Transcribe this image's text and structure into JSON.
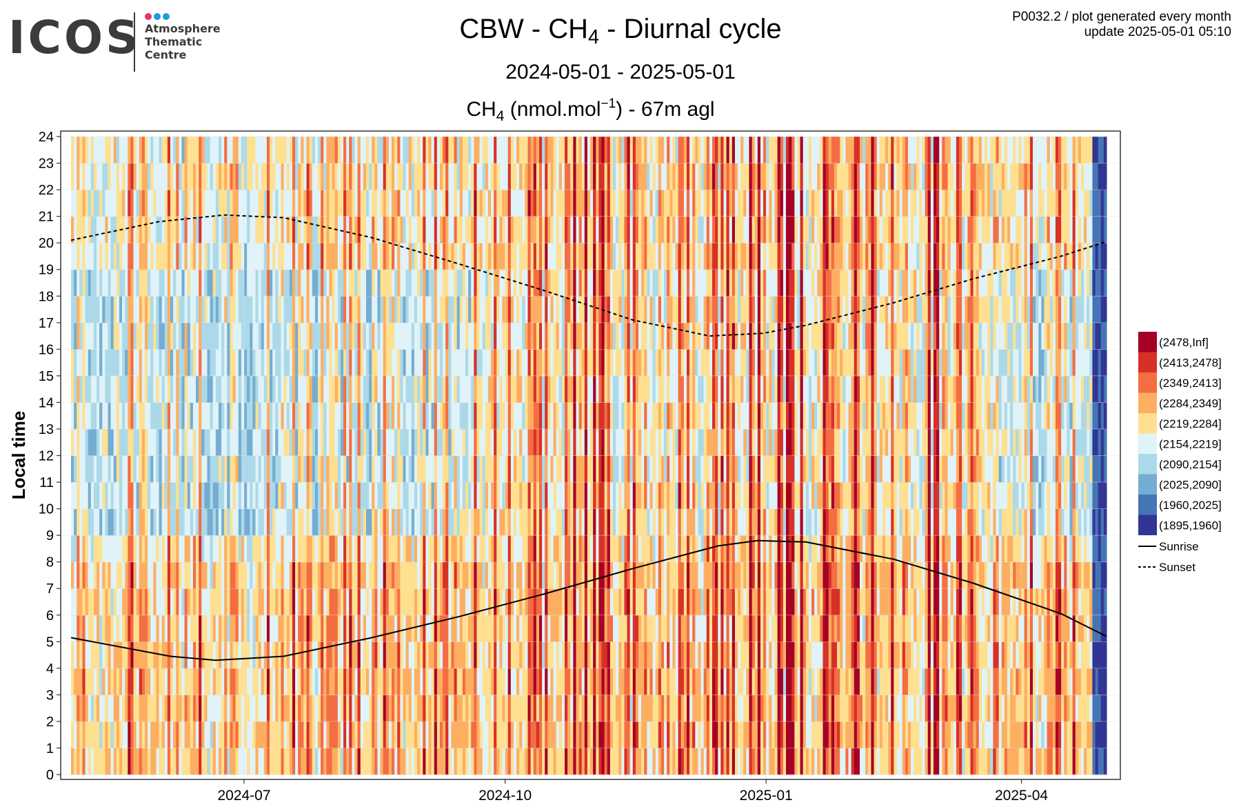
{
  "logo": {
    "text": "ICOS",
    "subtitle_lines": [
      "Atmosphere",
      "Thematic",
      "Centre"
    ],
    "dot_colors": [
      "#e8336e",
      "#1f9be0",
      "#1f9be0"
    ]
  },
  "header": {
    "title_pre": "CBW - CH",
    "title_sub": "4",
    "title_post": " - Diurnal cycle",
    "subtitle": "2024-05-01 - 2025-05-01",
    "meta_line1": "P0032.2 / plot generated every month",
    "meta_line2": "update  2025-05-01 05:10"
  },
  "chart_data": {
    "type": "heatmap",
    "plot_title": {
      "pre": "CH",
      "sub": "4",
      "mid": " (nmol.mol",
      "sup": "−1",
      "post": ") - 67m agl"
    },
    "ylabel": "Local time",
    "x_range": [
      "2024-05-01",
      "2025-05-01"
    ],
    "y_range": [
      0,
      24
    ],
    "y_ticks": [
      0,
      1,
      2,
      3,
      4,
      5,
      6,
      7,
      8,
      9,
      10,
      11,
      12,
      13,
      14,
      15,
      16,
      17,
      18,
      19,
      20,
      21,
      22,
      23,
      24
    ],
    "x_ticks": [
      {
        "date": "2024-07-01",
        "label": "2024-07"
      },
      {
        "date": "2024-10-01",
        "label": "2024-10"
      },
      {
        "date": "2025-01-01",
        "label": "2025-01"
      },
      {
        "date": "2025-04-01",
        "label": "2025-04"
      }
    ],
    "grid": true,
    "legend_position": "right",
    "legend": [
      {
        "label": "(2478,Inf]",
        "color": "#a50026"
      },
      {
        "label": "(2413,2478]",
        "color": "#d73027"
      },
      {
        "label": "(2349,2413]",
        "color": "#f46d43"
      },
      {
        "label": "(2284,2349]",
        "color": "#fdae61"
      },
      {
        "label": "(2219,2284]",
        "color": "#fee090"
      },
      {
        "label": "(2154,2219]",
        "color": "#e0f3f8"
      },
      {
        "label": "(2090,2154]",
        "color": "#abd9e9"
      },
      {
        "label": "(2025,2090]",
        "color": "#74add1"
      },
      {
        "label": "(1960,2025]",
        "color": "#4575b4"
      },
      {
        "label": "(1895,1960]",
        "color": "#313695"
      }
    ],
    "lines": [
      {
        "name": "Sunrise",
        "style": "solid",
        "points": [
          [
            "2024-05-01",
            5.15
          ],
          [
            "2024-06-05",
            4.45
          ],
          [
            "2024-06-21",
            4.3
          ],
          [
            "2024-07-15",
            4.45
          ],
          [
            "2024-08-15",
            5.15
          ],
          [
            "2024-09-15",
            5.95
          ],
          [
            "2024-10-15",
            6.8
          ],
          [
            "2024-11-15",
            7.75
          ],
          [
            "2024-12-15",
            8.6
          ],
          [
            "2024-12-29",
            8.8
          ],
          [
            "2025-01-15",
            8.75
          ],
          [
            "2025-02-15",
            8.1
          ],
          [
            "2025-03-15",
            7.2
          ],
          [
            "2025-04-15",
            6.05
          ],
          [
            "2025-05-01",
            5.2
          ]
        ]
      },
      {
        "name": "Sunset",
        "style": "dashed",
        "points": [
          [
            "2024-05-01",
            20.1
          ],
          [
            "2024-06-01",
            20.8
          ],
          [
            "2024-06-24",
            21.05
          ],
          [
            "2024-07-15",
            20.95
          ],
          [
            "2024-08-15",
            20.2
          ],
          [
            "2024-09-15",
            19.2
          ],
          [
            "2024-10-15",
            18.2
          ],
          [
            "2024-11-15",
            17.1
          ],
          [
            "2024-12-12",
            16.5
          ],
          [
            "2024-12-31",
            16.6
          ],
          [
            "2025-01-15",
            16.9
          ],
          [
            "2025-02-15",
            17.75
          ],
          [
            "2025-03-15",
            18.65
          ],
          [
            "2025-04-15",
            19.5
          ],
          [
            "2025-05-01",
            20.05
          ]
        ]
      }
    ],
    "pattern_note_values": {
      "high_days": [
        "2024-10-25",
        "2024-10-29",
        "2024-11-01",
        "2024-11-04",
        "2024-12-26",
        "2024-12-29",
        "2025-01-05",
        "2025-01-08",
        "2025-01-09",
        "2025-01-13",
        "2025-01-21",
        "2025-02-01",
        "2025-02-07",
        "2025-02-27",
        "2025-03-01",
        "2025-03-02"
      ],
      "low_days": [
        "2025-04-27",
        "2025-04-29"
      ]
    }
  }
}
